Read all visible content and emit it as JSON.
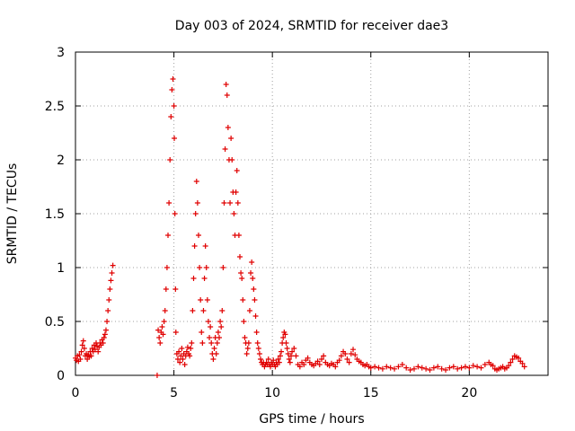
{
  "chart_data": {
    "type": "scatter",
    "title": "Day 003 of 2024, SRMTID for receiver dae3",
    "xlabel": "GPS time / hours",
    "ylabel": "SRMTID / TECUs",
    "xlim": [
      0,
      24
    ],
    "ylim": [
      0,
      3
    ],
    "xticks": [
      0,
      5,
      10,
      15,
      20
    ],
    "yticks": [
      0,
      0.5,
      1,
      1.5,
      2,
      2.5,
      3
    ],
    "ytick_labels": [
      "0",
      "0.5",
      "1",
      "1.5",
      "2",
      "2.5",
      "3"
    ],
    "grid": true,
    "marker": "+",
    "series": [
      {
        "name": "SRMTID",
        "color": "#e00000",
        "points": [
          [
            0.0,
            0.16
          ],
          [
            0.05,
            0.14
          ],
          [
            0.1,
            0.18
          ],
          [
            0.15,
            0.13
          ],
          [
            0.2,
            0.19
          ],
          [
            0.25,
            0.15
          ],
          [
            0.3,
            0.22
          ],
          [
            0.35,
            0.28
          ],
          [
            0.4,
            0.32
          ],
          [
            0.45,
            0.25
          ],
          [
            0.5,
            0.18
          ],
          [
            0.55,
            0.2
          ],
          [
            0.6,
            0.15
          ],
          [
            0.65,
            0.19
          ],
          [
            0.7,
            0.17
          ],
          [
            0.75,
            0.22
          ],
          [
            0.8,
            0.18
          ],
          [
            0.85,
            0.25
          ],
          [
            0.9,
            0.22
          ],
          [
            0.95,
            0.28
          ],
          [
            1.0,
            0.24
          ],
          [
            1.05,
            0.3
          ],
          [
            1.1,
            0.27
          ],
          [
            1.15,
            0.22
          ],
          [
            1.2,
            0.26
          ],
          [
            1.25,
            0.3
          ],
          [
            1.3,
            0.28
          ],
          [
            1.35,
            0.33
          ],
          [
            1.4,
            0.3
          ],
          [
            1.45,
            0.35
          ],
          [
            1.5,
            0.38
          ],
          [
            1.55,
            0.42
          ],
          [
            1.6,
            0.5
          ],
          [
            1.65,
            0.6
          ],
          [
            1.7,
            0.7
          ],
          [
            1.75,
            0.8
          ],
          [
            1.8,
            0.88
          ],
          [
            1.85,
            0.95
          ],
          [
            1.9,
            1.02
          ],
          [
            4.15,
            0.0
          ],
          [
            4.2,
            0.42
          ],
          [
            4.25,
            0.35
          ],
          [
            4.3,
            0.3
          ],
          [
            4.35,
            0.4
          ],
          [
            4.4,
            0.45
          ],
          [
            4.45,
            0.38
          ],
          [
            4.5,
            0.5
          ],
          [
            4.55,
            0.6
          ],
          [
            4.6,
            0.8
          ],
          [
            4.65,
            1.0
          ],
          [
            4.7,
            1.3
          ],
          [
            4.75,
            1.6
          ],
          [
            4.8,
            2.0
          ],
          [
            4.85,
            2.4
          ],
          [
            4.9,
            2.65
          ],
          [
            4.95,
            2.75
          ],
          [
            5.0,
            2.5
          ],
          [
            5.02,
            2.2
          ],
          [
            5.05,
            1.5
          ],
          [
            5.08,
            0.8
          ],
          [
            5.1,
            0.4
          ],
          [
            5.15,
            0.2
          ],
          [
            5.2,
            0.15
          ],
          [
            5.25,
            0.22
          ],
          [
            5.3,
            0.12
          ],
          [
            5.35,
            0.18
          ],
          [
            5.4,
            0.25
          ],
          [
            5.45,
            0.15
          ],
          [
            5.5,
            0.2
          ],
          [
            5.55,
            0.1
          ],
          [
            5.6,
            0.18
          ],
          [
            5.65,
            0.22
          ],
          [
            5.7,
            0.26
          ],
          [
            5.75,
            0.2
          ],
          [
            5.8,
            0.18
          ],
          [
            5.85,
            0.25
          ],
          [
            5.9,
            0.3
          ],
          [
            5.95,
            0.6
          ],
          [
            6.0,
            0.9
          ],
          [
            6.05,
            1.2
          ],
          [
            6.1,
            1.5
          ],
          [
            6.15,
            1.8
          ],
          [
            6.2,
            1.6
          ],
          [
            6.25,
            1.3
          ],
          [
            6.3,
            1.0
          ],
          [
            6.35,
            0.7
          ],
          [
            6.4,
            0.4
          ],
          [
            6.45,
            0.3
          ],
          [
            6.5,
            0.6
          ],
          [
            6.55,
            0.9
          ],
          [
            6.6,
            1.2
          ],
          [
            6.65,
            1.0
          ],
          [
            6.7,
            0.7
          ],
          [
            6.75,
            0.5
          ],
          [
            6.8,
            0.35
          ],
          [
            6.85,
            0.45
          ],
          [
            6.9,
            0.3
          ],
          [
            6.95,
            0.2
          ],
          [
            7.0,
            0.15
          ],
          [
            7.05,
            0.25
          ],
          [
            7.1,
            0.35
          ],
          [
            7.15,
            0.2
          ],
          [
            7.2,
            0.3
          ],
          [
            7.25,
            0.4
          ],
          [
            7.3,
            0.35
          ],
          [
            7.35,
            0.5
          ],
          [
            7.4,
            0.45
          ],
          [
            7.45,
            0.6
          ],
          [
            7.5,
            1.0
          ],
          [
            7.55,
            1.6
          ],
          [
            7.6,
            2.1
          ],
          [
            7.65,
            2.7
          ],
          [
            7.7,
            2.6
          ],
          [
            7.75,
            2.3
          ],
          [
            7.8,
            2.0
          ],
          [
            7.85,
            1.6
          ],
          [
            7.9,
            2.2
          ],
          [
            7.95,
            2.0
          ],
          [
            8.0,
            1.7
          ],
          [
            8.05,
            1.5
          ],
          [
            8.1,
            1.3
          ],
          [
            8.15,
            1.7
          ],
          [
            8.2,
            1.9
          ],
          [
            8.25,
            1.6
          ],
          [
            8.3,
            1.3
          ],
          [
            8.35,
            1.1
          ],
          [
            8.4,
            0.95
          ],
          [
            8.45,
            0.9
          ],
          [
            8.5,
            0.7
          ],
          [
            8.55,
            0.5
          ],
          [
            8.6,
            0.35
          ],
          [
            8.65,
            0.3
          ],
          [
            8.7,
            0.2
          ],
          [
            8.75,
            0.25
          ],
          [
            8.8,
            0.3
          ],
          [
            8.85,
            0.6
          ],
          [
            8.9,
            0.95
          ],
          [
            8.95,
            1.05
          ],
          [
            9.0,
            0.9
          ],
          [
            9.05,
            0.8
          ],
          [
            9.1,
            0.7
          ],
          [
            9.15,
            0.55
          ],
          [
            9.2,
            0.4
          ],
          [
            9.25,
            0.3
          ],
          [
            9.3,
            0.25
          ],
          [
            9.35,
            0.2
          ],
          [
            9.4,
            0.15
          ],
          [
            9.45,
            0.12
          ],
          [
            9.5,
            0.1
          ],
          [
            9.55,
            0.12
          ],
          [
            9.6,
            0.08
          ],
          [
            9.65,
            0.1
          ],
          [
            9.7,
            0.12
          ],
          [
            9.75,
            0.1
          ],
          [
            9.8,
            0.15
          ],
          [
            9.85,
            0.1
          ],
          [
            9.9,
            0.08
          ],
          [
            9.95,
            0.12
          ],
          [
            10.0,
            0.1
          ],
          [
            10.05,
            0.14
          ],
          [
            10.1,
            0.1
          ],
          [
            10.15,
            0.08
          ],
          [
            10.2,
            0.12
          ],
          [
            10.25,
            0.1
          ],
          [
            10.3,
            0.15
          ],
          [
            10.35,
            0.12
          ],
          [
            10.4,
            0.18
          ],
          [
            10.45,
            0.22
          ],
          [
            10.5,
            0.3
          ],
          [
            10.55,
            0.35
          ],
          [
            10.6,
            0.4
          ],
          [
            10.65,
            0.38
          ],
          [
            10.7,
            0.3
          ],
          [
            10.75,
            0.25
          ],
          [
            10.8,
            0.2
          ],
          [
            10.85,
            0.15
          ],
          [
            10.9,
            0.12
          ],
          [
            10.95,
            0.18
          ],
          [
            11.0,
            0.22
          ],
          [
            11.1,
            0.25
          ],
          [
            11.2,
            0.18
          ],
          [
            11.3,
            0.1
          ],
          [
            11.4,
            0.08
          ],
          [
            11.5,
            0.12
          ],
          [
            11.6,
            0.1
          ],
          [
            11.7,
            0.14
          ],
          [
            11.8,
            0.16
          ],
          [
            11.9,
            0.12
          ],
          [
            12.0,
            0.1
          ],
          [
            12.1,
            0.09
          ],
          [
            12.2,
            0.11
          ],
          [
            12.3,
            0.13
          ],
          [
            12.4,
            0.1
          ],
          [
            12.5,
            0.15
          ],
          [
            12.6,
            0.18
          ],
          [
            12.7,
            0.12
          ],
          [
            12.8,
            0.1
          ],
          [
            12.9,
            0.09
          ],
          [
            13.0,
            0.11
          ],
          [
            13.1,
            0.1
          ],
          [
            13.2,
            0.08
          ],
          [
            13.3,
            0.12
          ],
          [
            13.4,
            0.14
          ],
          [
            13.5,
            0.18
          ],
          [
            13.6,
            0.22
          ],
          [
            13.7,
            0.2
          ],
          [
            13.8,
            0.15
          ],
          [
            13.9,
            0.12
          ],
          [
            14.0,
            0.2
          ],
          [
            14.1,
            0.24
          ],
          [
            14.2,
            0.19
          ],
          [
            14.3,
            0.15
          ],
          [
            14.4,
            0.13
          ],
          [
            14.5,
            0.12
          ],
          [
            14.6,
            0.1
          ],
          [
            14.7,
            0.09
          ],
          [
            14.8,
            0.1
          ],
          [
            14.9,
            0.08
          ],
          [
            15.0,
            0.07
          ],
          [
            15.2,
            0.08
          ],
          [
            15.4,
            0.07
          ],
          [
            15.6,
            0.06
          ],
          [
            15.8,
            0.08
          ],
          [
            16.0,
            0.07
          ],
          [
            16.2,
            0.06
          ],
          [
            16.4,
            0.08
          ],
          [
            16.6,
            0.1
          ],
          [
            16.8,
            0.07
          ],
          [
            17.0,
            0.05
          ],
          [
            17.2,
            0.06
          ],
          [
            17.4,
            0.08
          ],
          [
            17.6,
            0.07
          ],
          [
            17.8,
            0.06
          ],
          [
            18.0,
            0.05
          ],
          [
            18.2,
            0.07
          ],
          [
            18.4,
            0.08
          ],
          [
            18.6,
            0.06
          ],
          [
            18.8,
            0.05
          ],
          [
            19.0,
            0.07
          ],
          [
            19.2,
            0.08
          ],
          [
            19.4,
            0.06
          ],
          [
            19.6,
            0.07
          ],
          [
            19.8,
            0.08
          ],
          [
            20.0,
            0.07
          ],
          [
            20.2,
            0.09
          ],
          [
            20.4,
            0.08
          ],
          [
            20.6,
            0.07
          ],
          [
            20.8,
            0.1
          ],
          [
            21.0,
            0.12
          ],
          [
            21.1,
            0.1
          ],
          [
            21.2,
            0.09
          ],
          [
            21.3,
            0.06
          ],
          [
            21.4,
            0.05
          ],
          [
            21.5,
            0.06
          ],
          [
            21.6,
            0.07
          ],
          [
            21.7,
            0.08
          ],
          [
            21.8,
            0.06
          ],
          [
            21.9,
            0.07
          ],
          [
            22.0,
            0.09
          ],
          [
            22.1,
            0.12
          ],
          [
            22.2,
            0.15
          ],
          [
            22.3,
            0.18
          ],
          [
            22.4,
            0.17
          ],
          [
            22.5,
            0.16
          ],
          [
            22.6,
            0.13
          ],
          [
            22.7,
            0.11
          ],
          [
            22.8,
            0.08
          ]
        ]
      }
    ]
  }
}
